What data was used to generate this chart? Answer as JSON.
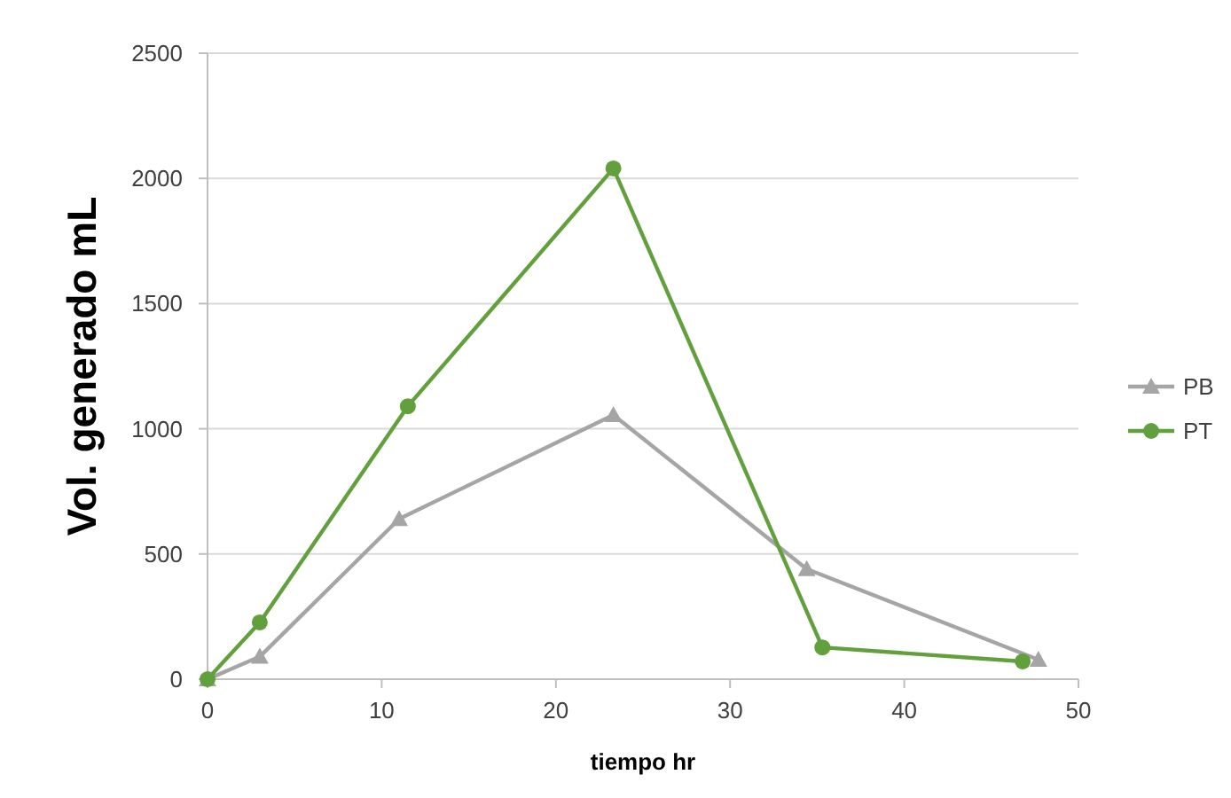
{
  "chart_data": {
    "type": "line",
    "xlabel": "tiempo hr",
    "ylabel": "Vol. generado mL",
    "xlim": [
      0,
      50
    ],
    "xticks": [
      0,
      10,
      20,
      30,
      40,
      50
    ],
    "ylim": [
      0,
      2500
    ],
    "yticks": [
      0,
      500,
      1000,
      1500,
      2000,
      2500
    ],
    "grid": "y",
    "legend": "right",
    "series": [
      {
        "name": "PB",
        "color": "#a5a5a5",
        "marker": "triangle",
        "x": [
          0,
          3,
          11,
          23.3,
          34.4,
          47.7
        ],
        "values": [
          0,
          90,
          640,
          1055,
          440,
          78
        ]
      },
      {
        "name": "PT",
        "color": "#62a03e",
        "marker": "circle",
        "x": [
          0,
          3,
          11.5,
          23.3,
          35.3,
          46.8
        ],
        "values": [
          0,
          227,
          1090,
          2040,
          127,
          71
        ]
      }
    ]
  }
}
